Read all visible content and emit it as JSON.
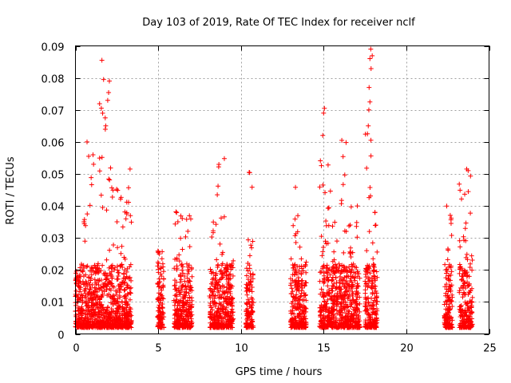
{
  "chart_data": {
    "type": "scatter",
    "title": "Day 103 of 2019, Rate Of TEC Index for receiver nclf",
    "xlabel": "GPS time / hours",
    "ylabel": "ROTI / TECUs",
    "xlim": [
      0,
      25
    ],
    "ylim": [
      0,
      0.09
    ],
    "x_ticks": [
      "0",
      "5",
      "10",
      "15",
      "20",
      "25"
    ],
    "y_ticks": [
      "0",
      "0.01",
      "0.02",
      "0.03",
      "0.04",
      "0.05",
      "0.06",
      "0.07",
      "0.08",
      "0.09"
    ],
    "grid": true,
    "marker": "+",
    "color": "#ff0000",
    "clusters": [
      {
        "x_range": [
          0.0,
          0.35
        ],
        "y_max": 0.019
      },
      {
        "x_range": [
          0.35,
          0.75
        ],
        "y_max": 0.039
      },
      {
        "x_range": [
          0.75,
          1.1
        ],
        "y_max": 0.06
      },
      {
        "x_range": [
          1.1,
          1.45
        ],
        "y_max": 0.03
      },
      {
        "x_range": [
          1.45,
          2.05
        ],
        "y_max": 0.085
      },
      {
        "x_range": [
          2.05,
          2.55
        ],
        "y_max": 0.052
      },
      {
        "x_range": [
          2.55,
          3.05
        ],
        "y_max": 0.045
      },
      {
        "x_range": [
          3.05,
          3.4
        ],
        "y_max": 0.052
      },
      {
        "x_range": [
          4.95,
          5.35
        ],
        "y_max": 0.027
      },
      {
        "x_range": [
          5.95,
          6.45
        ],
        "y_max": 0.041
      },
      {
        "x_range": [
          6.45,
          7.05
        ],
        "y_max": 0.04
      },
      {
        "x_range": [
          8.1,
          8.55
        ],
        "y_max": 0.035
      },
      {
        "x_range": [
          8.55,
          9.0
        ],
        "y_max": 0.055
      },
      {
        "x_range": [
          9.0,
          9.55
        ],
        "y_max": 0.023
      },
      {
        "x_range": [
          10.3,
          10.75
        ],
        "y_max": 0.051
      },
      {
        "x_range": [
          13.0,
          13.45
        ],
        "y_max": 0.046
      },
      {
        "x_range": [
          13.45,
          13.95
        ],
        "y_max": 0.029
      },
      {
        "x_range": [
          14.75,
          15.35
        ],
        "y_max": 0.071
      },
      {
        "x_range": [
          15.35,
          15.85
        ],
        "y_max": 0.045
      },
      {
        "x_range": [
          15.85,
          16.45
        ],
        "y_max": 0.061
      },
      {
        "x_range": [
          16.45,
          17.2
        ],
        "y_max": 0.041
      },
      {
        "x_range": [
          17.5,
          17.95
        ],
        "y_max": 0.089
      },
      {
        "x_range": [
          17.95,
          18.25
        ],
        "y_max": 0.04
      },
      {
        "x_range": [
          22.3,
          22.8
        ],
        "y_max": 0.041
      },
      {
        "x_range": [
          23.2,
          23.65
        ],
        "y_max": 0.047
      },
      {
        "x_range": [
          23.65,
          24.0
        ],
        "y_max": 0.052
      }
    ],
    "peaks": [
      {
        "x": 1.6,
        "y": 0.0855
      },
      {
        "x": 1.7,
        "y": 0.0795
      },
      {
        "x": 2.05,
        "y": 0.079
      },
      {
        "x": 1.95,
        "y": 0.073
      },
      {
        "x": 1.8,
        "y": 0.0675
      },
      {
        "x": 0.7,
        "y": 0.06
      },
      {
        "x": 0.8,
        "y": 0.0555
      },
      {
        "x": 3.3,
        "y": 0.0515
      },
      {
        "x": 9.0,
        "y": 0.0548
      },
      {
        "x": 10.5,
        "y": 0.0505
      },
      {
        "x": 13.3,
        "y": 0.0458
      },
      {
        "x": 15.05,
        "y": 0.0705
      },
      {
        "x": 15.0,
        "y": 0.069
      },
      {
        "x": 14.95,
        "y": 0.062
      },
      {
        "x": 16.1,
        "y": 0.0605
      },
      {
        "x": 17.85,
        "y": 0.089
      },
      {
        "x": 17.8,
        "y": 0.086
      },
      {
        "x": 17.75,
        "y": 0.077
      },
      {
        "x": 17.8,
        "y": 0.0725
      },
      {
        "x": 17.7,
        "y": 0.065
      },
      {
        "x": 17.65,
        "y": 0.0625
      },
      {
        "x": 17.6,
        "y": 0.0518
      },
      {
        "x": 23.65,
        "y": 0.0515
      }
    ]
  }
}
